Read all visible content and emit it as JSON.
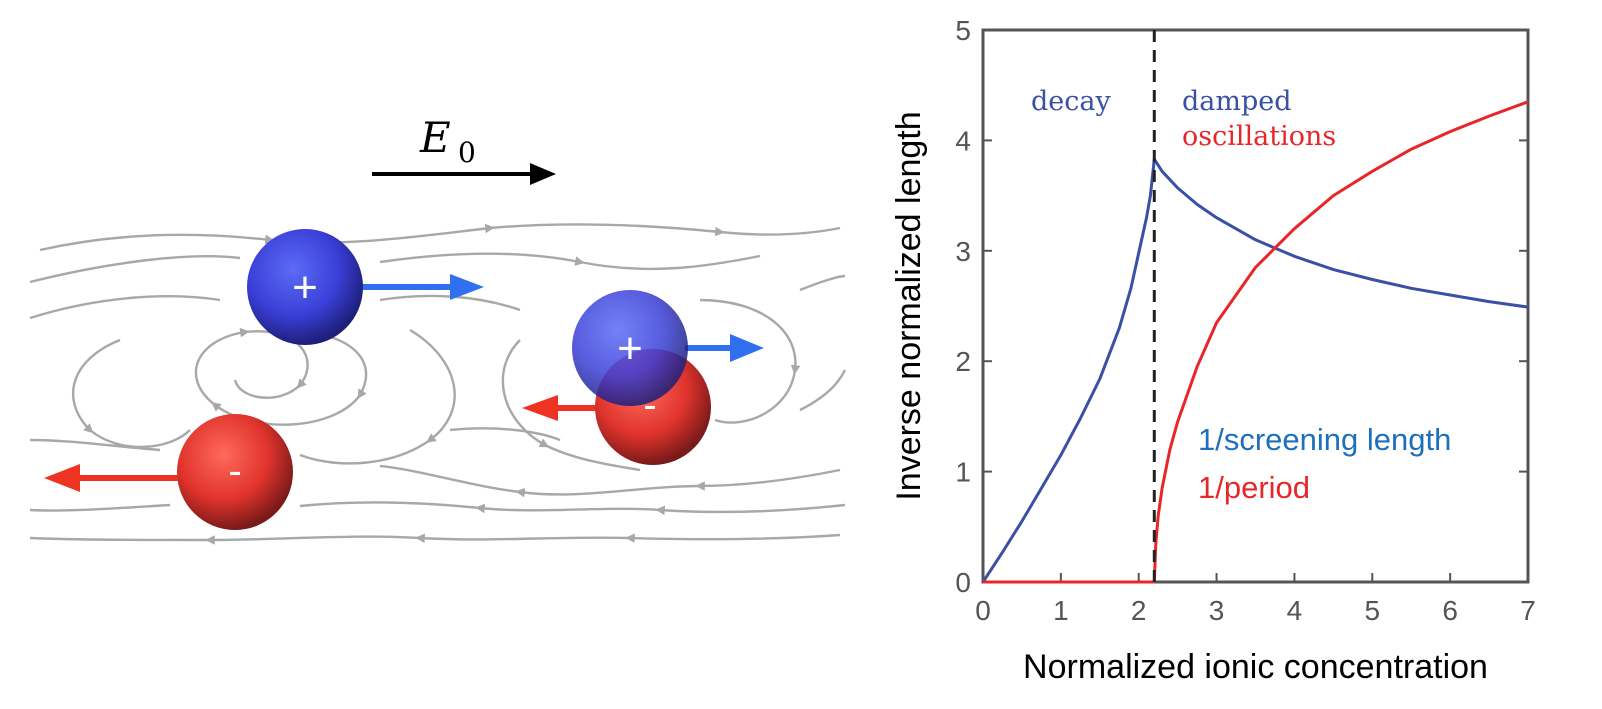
{
  "illustration": {
    "field_label": "E",
    "field_subscript": "0",
    "positive_charge_symbol": "+",
    "negative_charge_symbol": "-",
    "colors": {
      "positive": "#3a3fd8",
      "negative": "#e0332c",
      "velocity_positive": "#2f6ff0",
      "velocity_negative": "#ee3322",
      "streamlines": "#a8a8a8",
      "field_arrow": "#000000"
    }
  },
  "chart_data": {
    "type": "line",
    "title": "",
    "xlabel": "Normalized ionic concentration",
    "ylabel": "Inverse normalized length",
    "xlim": [
      0,
      7
    ],
    "ylim": [
      0,
      5
    ],
    "xticks": [
      0,
      1,
      2,
      3,
      4,
      5,
      6,
      7
    ],
    "yticks": [
      0,
      1,
      2,
      3,
      4,
      5
    ],
    "grid": false,
    "vline": {
      "x": 2.2,
      "style": "dashed",
      "color": "#222222"
    },
    "series": [
      {
        "name": "1/screening length",
        "color": "#3a4fa6",
        "x": [
          0,
          0.25,
          0.5,
          0.75,
          1.0,
          1.25,
          1.5,
          1.75,
          1.9,
          2.0,
          2.1,
          2.15,
          2.2,
          2.3,
          2.5,
          2.75,
          3.0,
          3.5,
          4.0,
          4.5,
          5.0,
          5.5,
          6.0,
          6.5,
          7.0
        ],
        "y": [
          0,
          0.27,
          0.55,
          0.85,
          1.15,
          1.48,
          1.84,
          2.3,
          2.66,
          2.98,
          3.3,
          3.5,
          3.83,
          3.72,
          3.57,
          3.42,
          3.3,
          3.1,
          2.95,
          2.83,
          2.74,
          2.66,
          2.6,
          2.54,
          2.49
        ]
      },
      {
        "name": "1/period",
        "color": "#e8262a",
        "x": [
          0,
          1.0,
          2.2,
          2.22,
          2.25,
          2.3,
          2.4,
          2.5,
          2.75,
          3.0,
          3.5,
          4.0,
          4.5,
          5.0,
          5.5,
          6.0,
          6.5,
          7.0
        ],
        "y": [
          0,
          0,
          0,
          0.35,
          0.6,
          0.85,
          1.2,
          1.45,
          1.95,
          2.35,
          2.85,
          3.2,
          3.5,
          3.72,
          3.92,
          4.08,
          4.22,
          4.35
        ]
      }
    ],
    "annotations": [
      {
        "text": "decay",
        "color": "#3a4fa6"
      },
      {
        "text": "damped",
        "color": "#3a4fa6"
      },
      {
        "text": "oscillations",
        "color": "#e8262a"
      }
    ],
    "legend": {
      "placement": "lower-right",
      "entries": [
        {
          "text": "1/screening length",
          "color": "#1f6fbf"
        },
        {
          "text": "1/period",
          "color": "#e8262a"
        }
      ]
    }
  }
}
